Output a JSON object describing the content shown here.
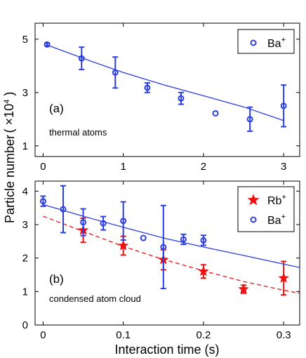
{
  "figure": {
    "ylabel": "Particle number",
    "ylabel_unit": "( ×10",
    "ylabel_exp": "4",
    "ylabel_close": " )",
    "colors": {
      "blue": "#2b3fe0",
      "red": "#ee1111",
      "axis": "#000000"
    }
  },
  "chart_data": [
    {
      "type": "scatter",
      "panel_label": "(a)",
      "annotation": "thermal atoms",
      "xlim": [
        -0.1,
        3.2
      ],
      "ylim": [
        0.6,
        5.6
      ],
      "xticks": [
        0,
        1,
        2,
        3
      ],
      "yticks": [
        1,
        3,
        5
      ],
      "legend_position": "top-right",
      "series": [
        {
          "name": "Ba",
          "name_sup": "+",
          "marker": "circle",
          "color": "#2b3fe0",
          "x": [
            0.05,
            0.48,
            0.9,
            1.3,
            1.72,
            2.15,
            2.58,
            3.0
          ],
          "y": [
            4.8,
            4.28,
            3.75,
            3.18,
            2.78,
            2.22,
            2.0,
            2.5
          ],
          "err": [
            0.05,
            0.42,
            0.58,
            0.18,
            0.22,
            0.0,
            0.45,
            0.78
          ],
          "fit": {
            "x": [
              0.05,
              0.5,
              1.0,
              1.5,
              2.0,
              2.5,
              3.0
            ],
            "y": [
              4.78,
              4.28,
              3.75,
              3.29,
              2.88,
              2.46,
              1.95
            ]
          }
        }
      ]
    },
    {
      "type": "scatter",
      "panel_label": "(b)",
      "annotation": "condensed atom cloud",
      "xlabel": "Interaction time (s)",
      "xlim": [
        -0.01,
        0.32
      ],
      "ylim": [
        0,
        4.3
      ],
      "xticks": [
        0,
        0.1,
        0.2,
        0.3
      ],
      "yticks": [
        0,
        1,
        2,
        3,
        4
      ],
      "legend_position": "top-right",
      "series": [
        {
          "name": "Rb",
          "name_sup": "+",
          "marker": "star",
          "color": "#ee1111",
          "x": [
            0.05,
            0.1,
            0.15,
            0.2,
            0.25,
            0.3
          ],
          "y": [
            2.83,
            2.37,
            1.95,
            1.6,
            1.07,
            1.4
          ],
          "err": [
            0.36,
            0.28,
            0.3,
            0.2,
            0.12,
            0.5
          ],
          "fit": {
            "x": [
              0.0,
              0.05,
              0.1,
              0.15,
              0.2,
              0.25,
              0.3,
              0.32
            ],
            "y": [
              3.25,
              2.8,
              2.35,
              1.96,
              1.62,
              1.3,
              1.04,
              0.95
            ]
          }
        },
        {
          "name": "Ba",
          "name_sup": "+",
          "marker": "circle",
          "color": "#2b3fe0",
          "x": [
            0.0,
            0.025,
            0.05,
            0.075,
            0.1,
            0.125,
            0.15,
            0.175,
            0.2
          ],
          "y": [
            3.7,
            3.46,
            3.07,
            3.04,
            3.11,
            2.6,
            2.33,
            2.56,
            2.53
          ],
          "err": [
            0.15,
            0.7,
            0.4,
            0.2,
            0.57,
            0.0,
            1.24,
            0.15,
            0.15
          ],
          "fit": {
            "x": [
              0.0,
              0.05,
              0.1,
              0.15,
              0.2,
              0.25,
              0.3,
              0.32
            ],
            "y": [
              3.6,
              3.25,
              2.92,
              2.6,
              2.33,
              2.08,
              1.82,
              1.72
            ]
          }
        }
      ]
    }
  ]
}
